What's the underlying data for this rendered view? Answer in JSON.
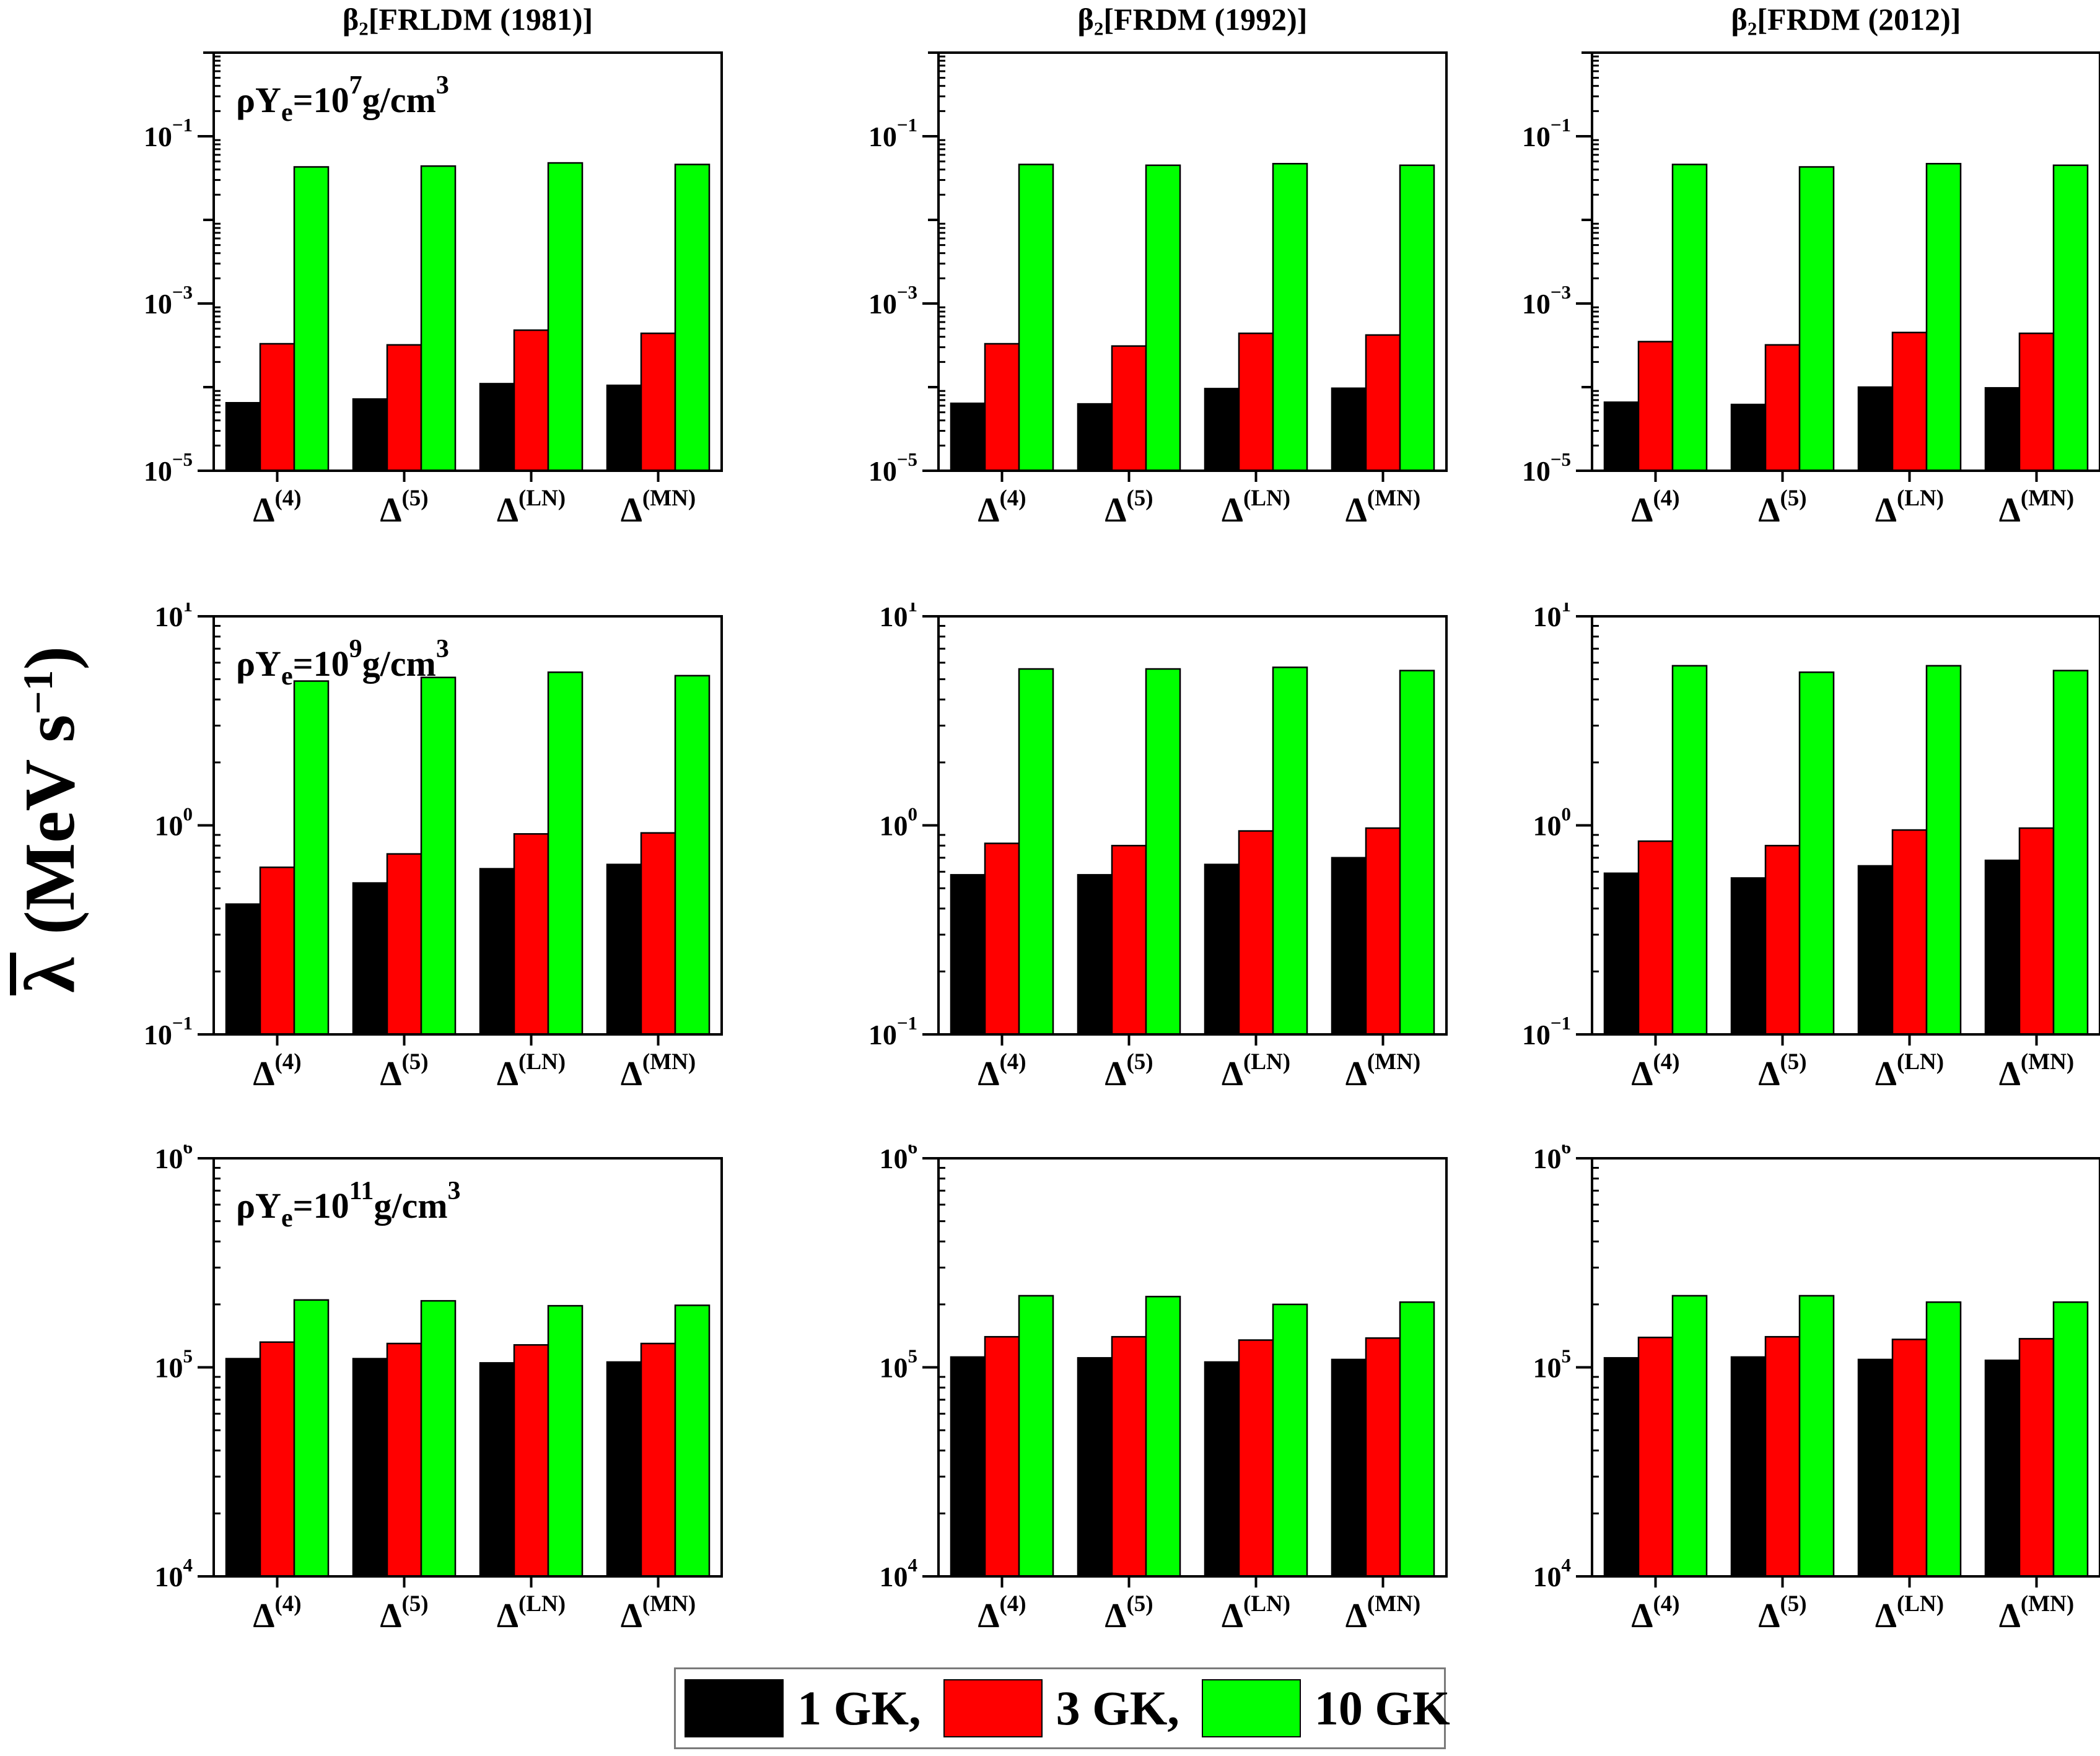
{
  "figure": {
    "background": "#ffffff",
    "y_axis_label": {
      "symbol": "λ",
      "overline": true,
      "rest_before_sup": " (MeV s",
      "sup_display": "−1",
      "rest_after_sup": ")"
    },
    "column_titles": [
      {
        "lead": "β",
        "sub": "2",
        "rest": "[FRLDM (1981)]"
      },
      {
        "lead": "β",
        "sub": "2",
        "rest": "[FRDM (1992)]"
      },
      {
        "lead": "β",
        "sub": "2",
        "rest": "[FRDM (2012)]"
      }
    ],
    "legend": {
      "entries": [
        {
          "label": "1 GK,",
          "color": "#000000"
        },
        {
          "label": "3 GK,",
          "color": "#ff0000"
        },
        {
          "label": "10 GK",
          "color": "#00ff00"
        }
      ]
    }
  },
  "chart_data": {
    "type": "bar",
    "y_scale": "log",
    "y_axis_label": "λ̄ (MeV s⁻¹)",
    "grid": false,
    "legend_position": "bottom",
    "categories": [
      {
        "base": "Δ",
        "sup": "(4)"
      },
      {
        "base": "Δ",
        "sup": "(5)"
      },
      {
        "base": "Δ",
        "sup": "(LN)"
      },
      {
        "base": "Δ",
        "sup": "(MN)"
      }
    ],
    "series_names": [
      "1 GK",
      "3 GK",
      "10 GK"
    ],
    "series_colors": [
      "#000000",
      "#ff0000",
      "#00ff00"
    ],
    "columns": [
      "β₂[FRLDM (1981)]",
      "β₂[FRDM (1992)]",
      "β₂[FRDM (2012)]"
    ],
    "rows": [
      {
        "inset": {
          "lead": "ρY",
          "sub": "e",
          "eq": "=10",
          "sup": "7",
          "unit": "g/cm",
          "unit_sup": "3"
        },
        "inset_text": "ρYe=10⁷g/cm³",
        "ylim_exp": [
          -5,
          0
        ],
        "ytick_exps": [
          -1,
          -3,
          -5
        ],
        "panels": [
          {
            "column": "β₂[FRLDM (1981)]",
            "series": [
              {
                "name": "1 GK",
                "values": [
                  6.5e-05,
                  7.2e-05,
                  0.00011,
                  0.000105
                ]
              },
              {
                "name": "3 GK",
                "values": [
                  0.00033,
                  0.00032,
                  0.00048,
                  0.00044
                ]
              },
              {
                "name": "10 GK",
                "values": [
                  0.043,
                  0.044,
                  0.048,
                  0.046
                ]
              }
            ]
          },
          {
            "column": "β₂[FRDM (1992)]",
            "series": [
              {
                "name": "1 GK",
                "values": [
                  6.4e-05,
                  6.3e-05,
                  9.6e-05,
                  9.7e-05
                ]
              },
              {
                "name": "3 GK",
                "values": [
                  0.00033,
                  0.00031,
                  0.00044,
                  0.00042
                ]
              },
              {
                "name": "10 GK",
                "values": [
                  0.046,
                  0.045,
                  0.047,
                  0.045
                ]
              }
            ]
          },
          {
            "column": "β₂[FRDM (2012)]",
            "series": [
              {
                "name": "1 GK",
                "values": [
                  6.6e-05,
                  6.2e-05,
                  0.0001,
                  9.8e-05
                ]
              },
              {
                "name": "3 GK",
                "values": [
                  0.00035,
                  0.00032,
                  0.00045,
                  0.00044
                ]
              },
              {
                "name": "10 GK",
                "values": [
                  0.046,
                  0.043,
                  0.047,
                  0.045
                ]
              }
            ]
          }
        ]
      },
      {
        "inset": {
          "lead": "ρY",
          "sub": "e",
          "eq": "=10",
          "sup": "9",
          "unit": "g/cm",
          "unit_sup": "3"
        },
        "inset_text": "ρYe=10⁹g/cm³",
        "ylim_exp": [
          -1,
          1
        ],
        "ytick_exps": [
          1,
          0,
          -1
        ],
        "panels": [
          {
            "column": "β₂[FRLDM (1981)]",
            "series": [
              {
                "name": "1 GK",
                "values": [
                  0.42,
                  0.53,
                  0.62,
                  0.65
                ]
              },
              {
                "name": "3 GK",
                "values": [
                  0.63,
                  0.73,
                  0.91,
                  0.92
                ]
              },
              {
                "name": "10 GK",
                "values": [
                  4.9,
                  5.1,
                  5.4,
                  5.2
                ]
              }
            ]
          },
          {
            "column": "β₂[FRDM (1992)]",
            "series": [
              {
                "name": "1 GK",
                "values": [
                  0.58,
                  0.58,
                  0.65,
                  0.7
                ]
              },
              {
                "name": "3 GK",
                "values": [
                  0.82,
                  0.8,
                  0.94,
                  0.97
                ]
              },
              {
                "name": "10 GK",
                "values": [
                  5.6,
                  5.6,
                  5.7,
                  5.5
                ]
              }
            ]
          },
          {
            "column": "β₂[FRDM (2012)]",
            "series": [
              {
                "name": "1 GK",
                "values": [
                  0.59,
                  0.56,
                  0.64,
                  0.68
                ]
              },
              {
                "name": "3 GK",
                "values": [
                  0.84,
                  0.8,
                  0.95,
                  0.97
                ]
              },
              {
                "name": "10 GK",
                "values": [
                  5.8,
                  5.4,
                  5.8,
                  5.5
                ]
              }
            ]
          }
        ]
      },
      {
        "inset": {
          "lead": "ρY",
          "sub": "e",
          "eq": "=10",
          "sup": "11",
          "unit": "g/cm",
          "unit_sup": "3"
        },
        "inset_text": "ρYe=10¹¹g/cm³",
        "ylim_exp": [
          4,
          6
        ],
        "ytick_exps": [
          6,
          5,
          4
        ],
        "panels": [
          {
            "column": "β₂[FRLDM (1981)]",
            "series": [
              {
                "name": "1 GK",
                "values": [
                  110000,
                  110000,
                  105000,
                  106000
                ]
              },
              {
                "name": "3 GK",
                "values": [
                  132000,
                  130000,
                  128000,
                  130000
                ]
              },
              {
                "name": "10 GK",
                "values": [
                  210000,
                  208000,
                  197000,
                  198000
                ]
              }
            ]
          },
          {
            "column": "β₂[FRDM (1992)]",
            "series": [
              {
                "name": "1 GK",
                "values": [
                  112000,
                  111000,
                  106000,
                  109000
                ]
              },
              {
                "name": "3 GK",
                "values": [
                  140000,
                  140000,
                  135000,
                  138000
                ]
              },
              {
                "name": "10 GK",
                "values": [
                  220000,
                  218000,
                  200000,
                  205000
                ]
              }
            ]
          },
          {
            "column": "β₂[FRDM (2012)]",
            "series": [
              {
                "name": "1 GK",
                "values": [
                  111000,
                  112000,
                  109000,
                  108000
                ]
              },
              {
                "name": "3 GK",
                "values": [
                  139000,
                  140000,
                  136000,
                  137000
                ]
              },
              {
                "name": "10 GK",
                "values": [
                  220000,
                  220000,
                  205000,
                  205000
                ]
              }
            ]
          }
        ]
      }
    ]
  }
}
